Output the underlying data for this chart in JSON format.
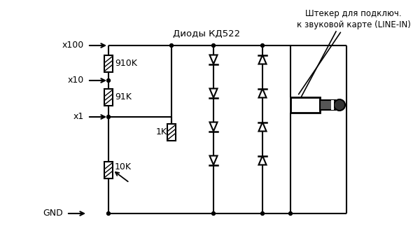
{
  "bg_color": "#ffffff",
  "label_x100": "x100",
  "label_x10": "x10",
  "label_x1": "x1",
  "label_gnd": "GND",
  "label_910k": "910K",
  "label_91k": "91K",
  "label_10k": "10K",
  "label_1k": "1K",
  "label_diodes": "Диоды КД522",
  "label_plug": "Штекер для подключ.",
  "label_plug2": "к звуковой карте (LINE-IN)"
}
